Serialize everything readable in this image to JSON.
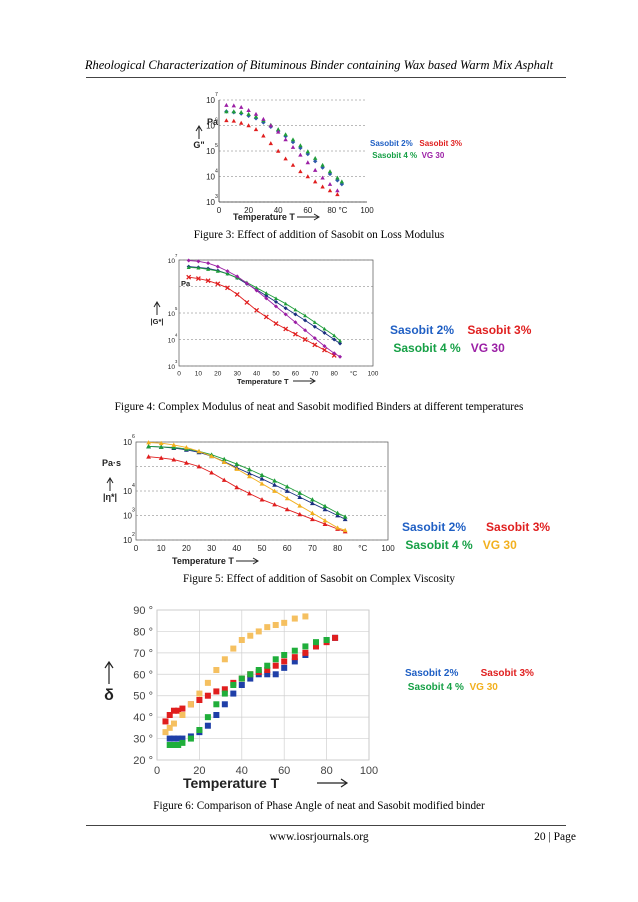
{
  "header": {
    "running_title": "Rheological Characterization of Bituminous Binder containing Wax based Warm Mix Asphalt"
  },
  "footer": {
    "url": "www.iosrjournals.org",
    "page": "20 | Page"
  },
  "colors": {
    "sasobit2": "#2e5aa8",
    "sasobit3": "#e01e1e",
    "sasobit4": "#1f9d3a",
    "vg30_fig3_4": "#9b1fa5",
    "vg30_fig5_6": "#f2b01f"
  },
  "legend": {
    "s2": "Sasobit 2%",
    "s3": "Sasobit 3%",
    "s4": "Sasobit 4 %",
    "vg": "VG 30"
  },
  "figures": [
    {
      "caption": "Figure 3: Effect of addition of Sasobit on Loss Modulus",
      "chart_data": {
        "type": "scatter",
        "ylabel": "G\"",
        "yunit": "Pa",
        "xlabel": "Temperature T",
        "xticks": [
          "0",
          "20",
          "40",
          "60",
          "80 °C",
          "100"
        ],
        "xlim": [
          0,
          100
        ],
        "ylog": true,
        "ylim_exp": [
          3,
          7
        ],
        "yticks": [
          {
            "base": "10",
            "exp": "7"
          },
          {
            "base": "10",
            "exp": "6"
          },
          {
            "base": "10",
            "exp": "5"
          },
          {
            "base": "10",
            "exp": "4"
          },
          {
            "base": "10",
            "exp": "3"
          }
        ],
        "series": [
          {
            "name": "Sasobit 2%",
            "color": "#2e5aa8",
            "marker": "diamond",
            "x": [
              5,
              10,
              15,
              20,
              25,
              30,
              35,
              40,
              45,
              50,
              55,
              60,
              65,
              70,
              75,
              80,
              83
            ],
            "y": [
              6.55,
              6.52,
              6.47,
              6.38,
              6.28,
              6.12,
              5.95,
              5.78,
              5.58,
              5.35,
              5.12,
              4.88,
              4.6,
              4.35,
              4.1,
              3.85,
              3.7
            ]
          },
          {
            "name": "Sasobit 3%",
            "color": "#e01e1e",
            "marker": "triangle",
            "x": [
              5,
              10,
              15,
              20,
              25,
              30,
              35,
              40,
              45,
              50,
              55,
              60,
              65,
              70,
              75,
              80
            ],
            "y": [
              6.2,
              6.18,
              6.1,
              6.0,
              5.85,
              5.6,
              5.3,
              5.0,
              4.7,
              4.45,
              4.2,
              4.0,
              3.8,
              3.6,
              3.45,
              3.3
            ]
          },
          {
            "name": "Sasobit 4 %",
            "color": "#1f9d3a",
            "marker": "triangle",
            "x": [
              5,
              10,
              15,
              20,
              25,
              30,
              35,
              40,
              45,
              50,
              55,
              60,
              65,
              70,
              75,
              80,
              83
            ],
            "y": [
              6.55,
              6.55,
              6.52,
              6.45,
              6.35,
              6.2,
              6.02,
              5.85,
              5.65,
              5.45,
              5.22,
              4.98,
              4.72,
              4.45,
              4.2,
              3.95,
              3.8
            ]
          },
          {
            "name": "VG 30",
            "color": "#9b1fa5",
            "marker": "triangle",
            "x": [
              5,
              10,
              15,
              20,
              25,
              30,
              35,
              40,
              45,
              50,
              55,
              60,
              65,
              70,
              75,
              80
            ],
            "y": [
              6.8,
              6.78,
              6.72,
              6.6,
              6.45,
              6.25,
              6.0,
              5.75,
              5.45,
              5.15,
              4.85,
              4.55,
              4.25,
              3.95,
              3.7,
              3.45
            ]
          }
        ]
      }
    },
    {
      "caption": "Figure 4: Complex Modulus of neat and Sasobit modified Binders at different temperatures",
      "chart_data": {
        "type": "line",
        "ylabel": "|G*|",
        "yunit": "Pa",
        "xlabel": "Temperature T",
        "xticks": [
          "0",
          "10",
          "20",
          "30",
          "40",
          "50",
          "60",
          "70",
          "80",
          "°C",
          "100"
        ],
        "xlim": [
          0,
          100
        ],
        "ylog": true,
        "ylim_exp": [
          3,
          7
        ],
        "yticks": [
          {
            "base": "10",
            "exp": "7"
          },
          {
            "base": "10",
            "exp": "5"
          },
          {
            "base": "10",
            "exp": "4"
          },
          {
            "base": "10",
            "exp": "3"
          }
        ],
        "series": [
          {
            "name": "Sasobit 2%",
            "color": "#1a2f80",
            "marker": "diamond",
            "x": [
              5,
              10,
              15,
              20,
              25,
              30,
              35,
              40,
              45,
              50,
              55,
              60,
              65,
              70,
              75,
              80,
              83
            ],
            "y": [
              6.75,
              6.72,
              6.68,
              6.6,
              6.48,
              6.32,
              6.1,
              5.88,
              5.65,
              5.42,
              5.18,
              4.95,
              4.72,
              4.48,
              4.25,
              4.0,
              3.85
            ]
          },
          {
            "name": "Sasobit 3%",
            "color": "#e01e1e",
            "marker": "x",
            "x": [
              5,
              10,
              15,
              20,
              25,
              30,
              35,
              40,
              45,
              50,
              55,
              60,
              65,
              70,
              75,
              80
            ],
            "y": [
              6.35,
              6.3,
              6.22,
              6.1,
              5.95,
              5.7,
              5.4,
              5.1,
              4.85,
              4.6,
              4.4,
              4.2,
              4.0,
              3.8,
              3.6,
              3.4
            ]
          },
          {
            "name": "Sasobit 4 %",
            "color": "#1f9d3a",
            "marker": "triangle",
            "x": [
              5,
              10,
              15,
              20,
              25,
              30,
              35,
              40,
              45,
              50,
              55,
              60,
              65,
              70,
              75,
              80,
              83
            ],
            "y": [
              6.72,
              6.7,
              6.65,
              6.58,
              6.48,
              6.33,
              6.15,
              5.95,
              5.75,
              5.55,
              5.35,
              5.12,
              4.9,
              4.65,
              4.4,
              4.15,
              3.95
            ]
          },
          {
            "name": "VG 30",
            "color": "#9b1fa5",
            "marker": "diamond",
            "x": [
              5,
              10,
              15,
              20,
              25,
              30,
              35,
              40,
              45,
              50,
              55,
              60,
              65,
              70,
              75,
              80,
              83
            ],
            "y": [
              6.98,
              6.95,
              6.88,
              6.75,
              6.58,
              6.38,
              6.12,
              5.85,
              5.55,
              5.25,
              4.95,
              4.65,
              4.35,
              4.05,
              3.75,
              3.48,
              3.35
            ]
          }
        ]
      }
    },
    {
      "caption": "Figure 5: Effect of addition of Sasobit on Complex Viscosity",
      "chart_data": {
        "type": "line",
        "ylabel": "|η*|",
        "yunit": "Pa·s",
        "xlabel": "Temperature T",
        "xticks": [
          "0",
          "10",
          "20",
          "30",
          "40",
          "50",
          "60",
          "70",
          "80",
          "°C",
          "100"
        ],
        "xlim": [
          0,
          100
        ],
        "ylog": true,
        "ylim_exp": [
          2,
          6
        ],
        "yticks": [
          {
            "base": "10",
            "exp": "6"
          },
          {
            "base": "10",
            "exp": "4"
          },
          {
            "base": "10",
            "exp": "3"
          },
          {
            "base": "10",
            "exp": "2"
          }
        ],
        "series": [
          {
            "name": "Sasobit 2%",
            "color": "#1a2f80",
            "marker": "triangle",
            "x": [
              5,
              10,
              15,
              20,
              25,
              30,
              35,
              40,
              45,
              50,
              55,
              60,
              65,
              70,
              75,
              80,
              83
            ],
            "y": [
              5.82,
              5.8,
              5.75,
              5.68,
              5.58,
              5.42,
              5.2,
              4.95,
              4.72,
              4.5,
              4.25,
              4.0,
              3.75,
              3.5,
              3.25,
              3.0,
              2.85
            ]
          },
          {
            "name": "Sasobit 3%",
            "color": "#e01e1e",
            "marker": "triangle",
            "x": [
              5,
              10,
              15,
              20,
              25,
              30,
              35,
              40,
              45,
              50,
              55,
              60,
              65,
              70,
              75,
              80,
              83
            ],
            "y": [
              5.4,
              5.35,
              5.28,
              5.15,
              5.0,
              4.75,
              4.45,
              4.15,
              3.9,
              3.65,
              3.45,
              3.25,
              3.05,
              2.85,
              2.65,
              2.45,
              2.35
            ]
          },
          {
            "name": "Sasobit 4 %",
            "color": "#1f9d3a",
            "marker": "triangle",
            "x": [
              5,
              10,
              15,
              20,
              25,
              30,
              35,
              40,
              45,
              50,
              55,
              60,
              65,
              70,
              75,
              80,
              83
            ],
            "y": [
              5.82,
              5.8,
              5.78,
              5.72,
              5.62,
              5.48,
              5.3,
              5.1,
              4.88,
              4.65,
              4.42,
              4.18,
              3.92,
              3.65,
              3.38,
              3.1,
              2.95
            ]
          },
          {
            "name": "VG 30",
            "color": "#f2b01f",
            "marker": "triangle",
            "x": [
              5,
              10,
              15,
              20,
              25,
              30,
              35,
              40,
              45,
              50,
              55,
              60,
              65,
              70,
              75,
              80,
              83
            ],
            "y": [
              5.98,
              5.95,
              5.88,
              5.78,
              5.62,
              5.42,
              5.18,
              4.9,
              4.6,
              4.3,
              4.0,
              3.7,
              3.4,
              3.1,
              2.8,
              2.5,
              2.4
            ]
          }
        ]
      }
    },
    {
      "caption": "Figure 6: Comparison of Phase Angle of neat and Sasobit modified binder",
      "chart_data": {
        "type": "scatter",
        "ylabel": "δ",
        "xlabel": "Temperature T",
        "xticks": [
          "0",
          "20",
          "40",
          "60",
          "80",
          "100"
        ],
        "xlim": [
          0,
          100
        ],
        "ylim": [
          20,
          90
        ],
        "yticks": [
          "90 °",
          "80 °",
          "70 °",
          "60 °",
          "50 °",
          "40 °",
          "30 °",
          "20 °"
        ],
        "series": [
          {
            "name": "Sasobit 2%",
            "color": "#1f3fa8",
            "marker": "square",
            "x": [
              6,
              8,
              10,
              12,
              16,
              20,
              24,
              28,
              32,
              36,
              40,
              44,
              48,
              52,
              56,
              60,
              65,
              70,
              75,
              80,
              84
            ],
            "y": [
              30,
              30,
              30,
              30,
              31,
              33,
              36,
              41,
              46,
              51,
              55,
              58,
              60,
              60,
              60,
              63,
              66,
              69,
              73,
              76,
              77
            ]
          },
          {
            "name": "Sasobit 3%",
            "color": "#e01e1e",
            "marker": "square",
            "x": [
              4,
              6,
              8,
              10,
              12,
              16,
              20,
              24,
              28,
              32,
              36,
              40,
              44,
              48,
              52,
              56,
              60,
              65,
              70,
              75,
              80,
              84
            ],
            "y": [
              38,
              41,
              43,
              43,
              44,
              46,
              48,
              50,
              52,
              53,
              56,
              58,
              60,
              61,
              62,
              64,
              66,
              68,
              70,
              73,
              75,
              77
            ]
          },
          {
            "name": "Sasobit 4 %",
            "color": "#1fae3a",
            "marker": "square",
            "x": [
              6,
              8,
              10,
              12,
              16,
              20,
              24,
              28,
              32,
              36,
              40,
              44,
              48,
              52,
              56,
              60,
              65,
              70,
              75,
              80
            ],
            "y": [
              27,
              27,
              27,
              28,
              30,
              34,
              40,
              46,
              51,
              55,
              58,
              60,
              62,
              64,
              67,
              69,
              71,
              73,
              75,
              76
            ]
          },
          {
            "name": "VG 30",
            "color": "#f5c060",
            "marker": "square",
            "x": [
              4,
              6,
              8,
              12,
              16,
              20,
              24,
              28,
              32,
              36,
              40,
              44,
              48,
              52,
              56,
              60,
              65,
              70
            ],
            "y": [
              33,
              35,
              37,
              41,
              46,
              51,
              56,
              62,
              67,
              72,
              76,
              78,
              80,
              82,
              83,
              84,
              86,
              87
            ]
          }
        ]
      }
    }
  ]
}
